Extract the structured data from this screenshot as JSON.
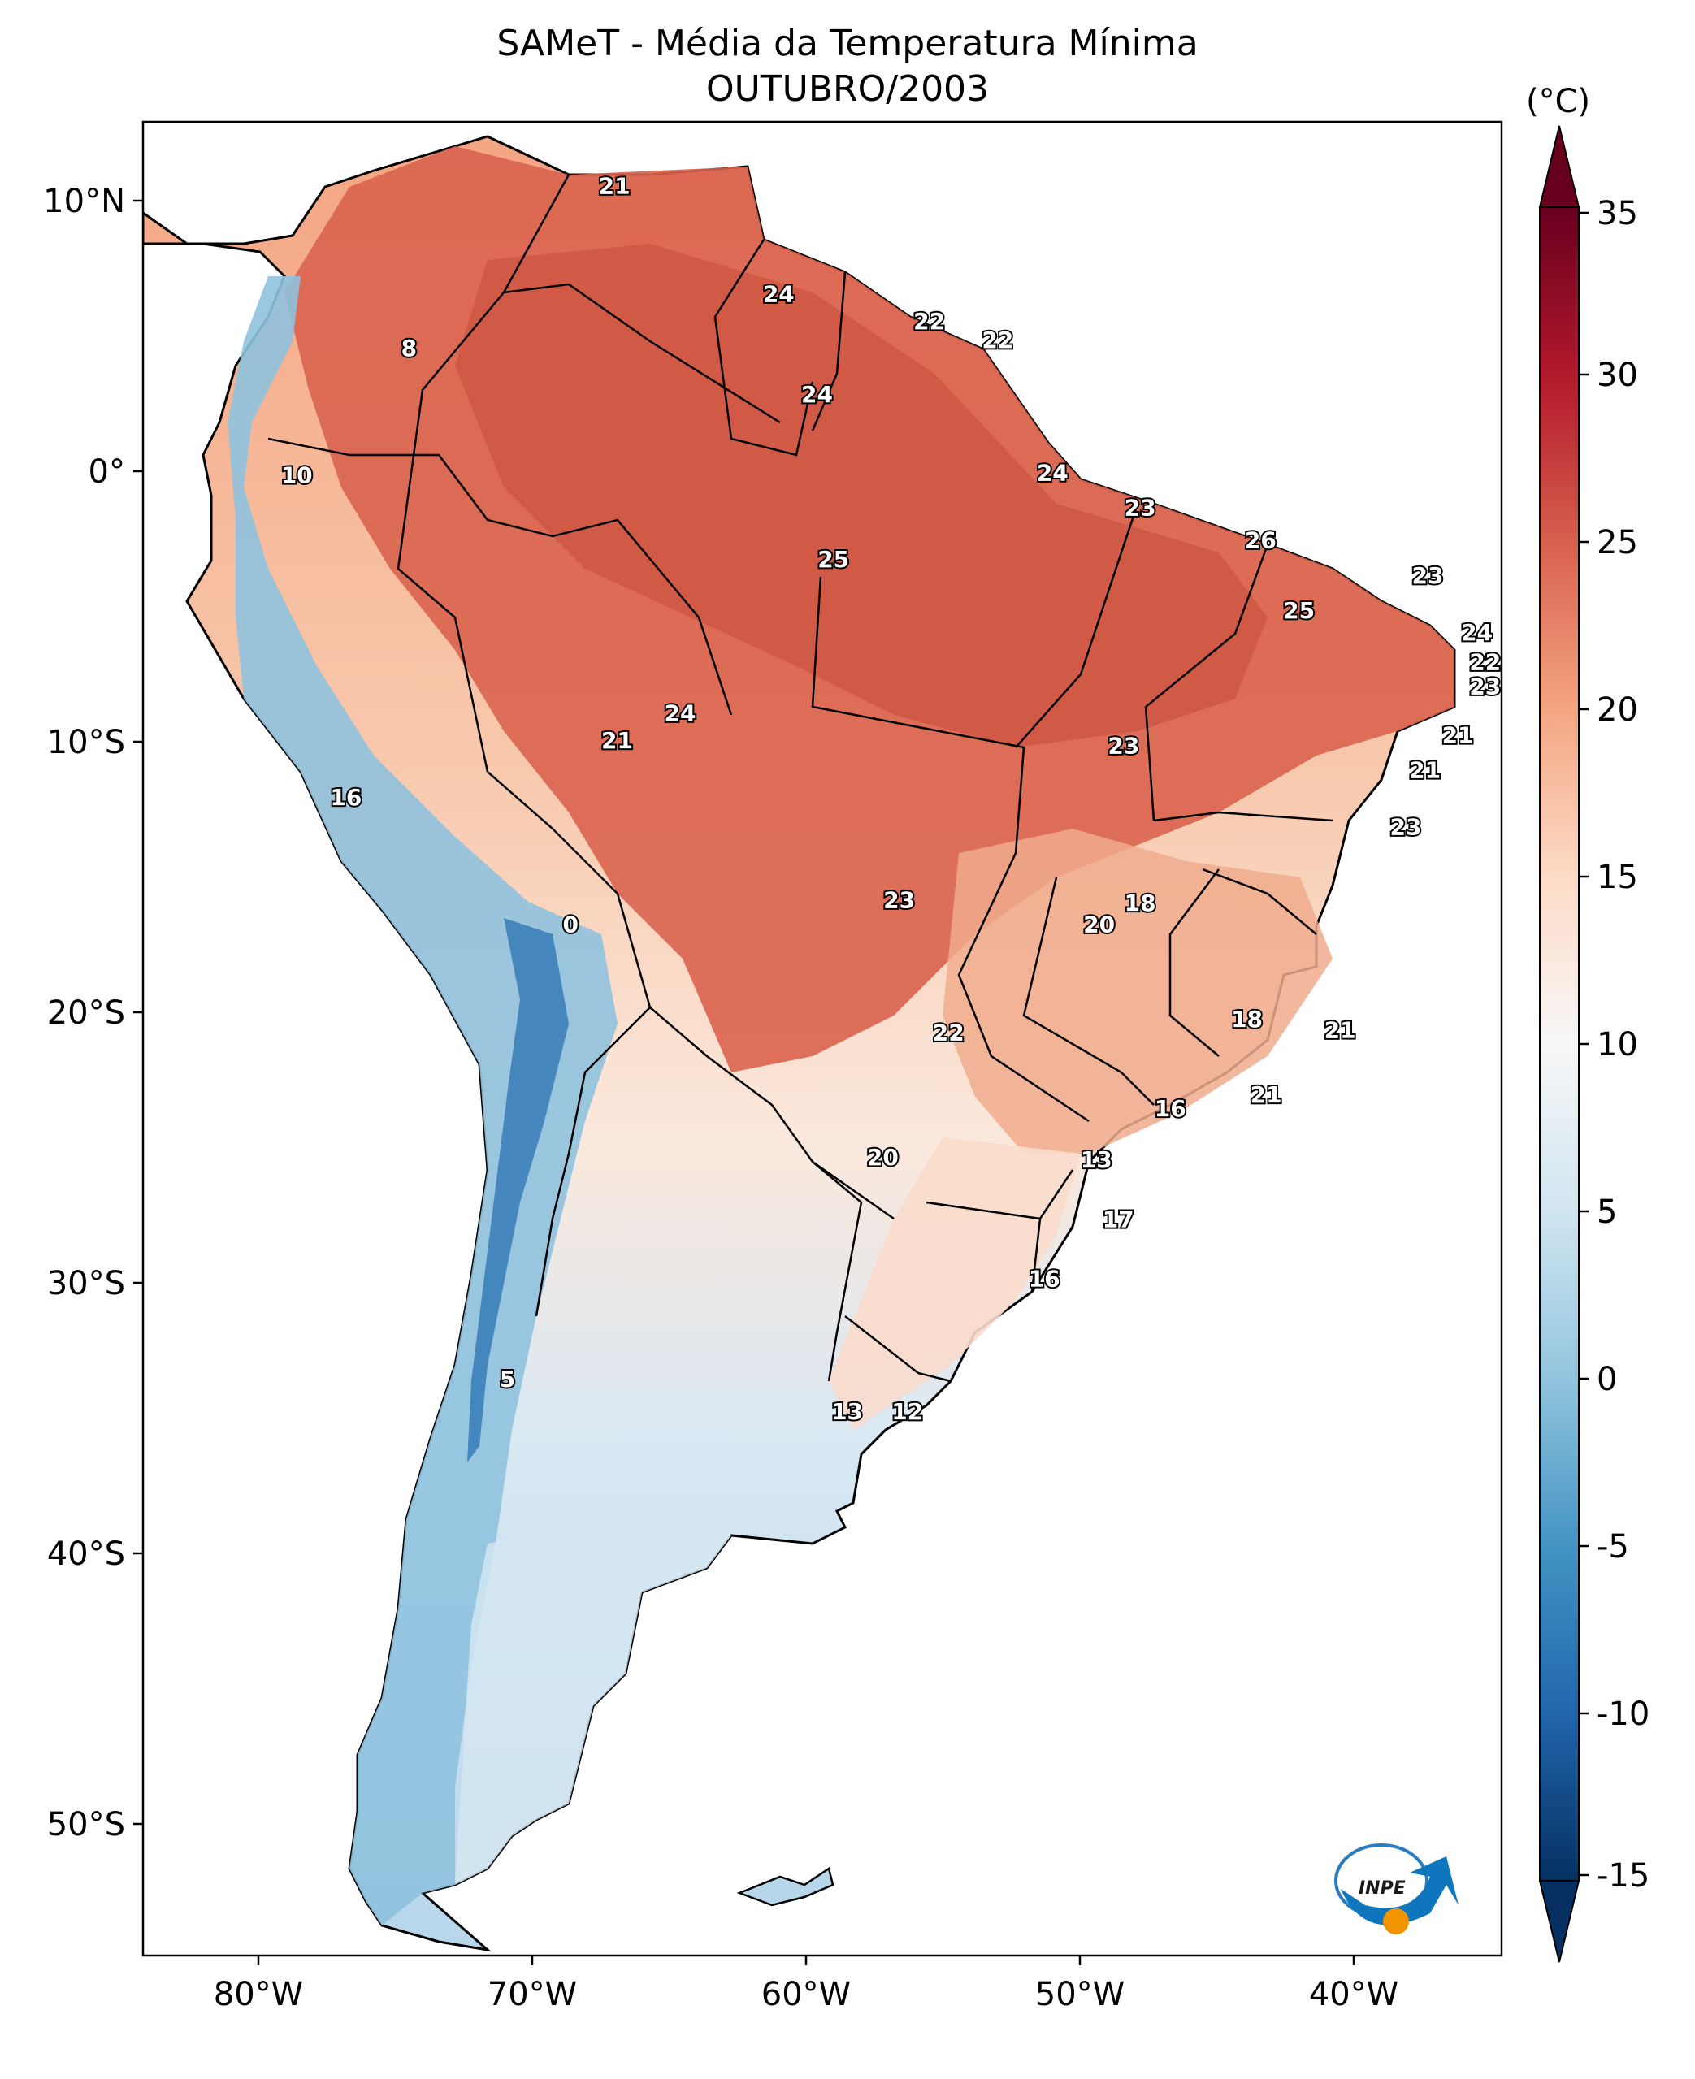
{
  "title": "SAMeT - Média da Temperatura Mínima",
  "subtitle": "OUTUBRO/2003",
  "colorbar": {
    "unit": "(°C)",
    "min": -15,
    "max": 35,
    "ticks": [
      "35",
      "30",
      "25",
      "20",
      "15",
      "10",
      "5",
      "0",
      "-5",
      "-10",
      "-15"
    ],
    "colors": [
      "#053061",
      "#2166ac",
      "#4393c3",
      "#92c5de",
      "#d1e5f0",
      "#f7f7f7",
      "#fddbc7",
      "#f4a582",
      "#d6604d",
      "#b2182b",
      "#67001f"
    ]
  },
  "axes": {
    "lon_ticks": [
      "80°W",
      "70°W",
      "60°W",
      "50°W",
      "40°W"
    ],
    "lat_ticks": [
      "10°N",
      "0°",
      "10°S",
      "20°S",
      "30°S",
      "40°S",
      "50°S"
    ]
  },
  "logo": {
    "text": "INPE",
    "icon": "inpe-logo-icon"
  },
  "contour_labels": [
    {
      "value": "21",
      "lon": -67.0,
      "lat": 10.5
    },
    {
      "value": "8",
      "lon": -74.5,
      "lat": 4.5
    },
    {
      "value": "24",
      "lon": -61.0,
      "lat": 6.5
    },
    {
      "value": "22",
      "lon": -55.5,
      "lat": 5.5
    },
    {
      "value": "22",
      "lon": -53.0,
      "lat": 4.8
    },
    {
      "value": "24",
      "lon": -59.6,
      "lat": 2.8
    },
    {
      "value": "10",
      "lon": -78.6,
      "lat": -0.2
    },
    {
      "value": "24",
      "lon": -51.0,
      "lat": -0.1
    },
    {
      "value": "23",
      "lon": -47.8,
      "lat": -1.4
    },
    {
      "value": "26",
      "lon": -43.4,
      "lat": -2.6
    },
    {
      "value": "25",
      "lon": -59.0,
      "lat": -3.3
    },
    {
      "value": "23",
      "lon": -37.3,
      "lat": -3.9
    },
    {
      "value": "25",
      "lon": -42.0,
      "lat": -5.2
    },
    {
      "value": "24",
      "lon": -35.5,
      "lat": -6.0
    },
    {
      "value": "22",
      "lon": -35.2,
      "lat": -7.1
    },
    {
      "value": "23",
      "lon": -35.2,
      "lat": -8.0
    },
    {
      "value": "24",
      "lon": -64.6,
      "lat": -9.0
    },
    {
      "value": "21",
      "lon": -66.9,
      "lat": -10.0
    },
    {
      "value": "21",
      "lon": -36.2,
      "lat": -9.8
    },
    {
      "value": "23",
      "lon": -48.4,
      "lat": -10.2
    },
    {
      "value": "21",
      "lon": -37.4,
      "lat": -11.1
    },
    {
      "value": "16",
      "lon": -76.8,
      "lat": -12.1
    },
    {
      "value": "23",
      "lon": -38.1,
      "lat": -13.2
    },
    {
      "value": "23",
      "lon": -56.6,
      "lat": -15.9
    },
    {
      "value": "18",
      "lon": -47.8,
      "lat": -16.0
    },
    {
      "value": "0",
      "lon": -68.6,
      "lat": -16.8
    },
    {
      "value": "20",
      "lon": -49.3,
      "lat": -16.8
    },
    {
      "value": "18",
      "lon": -43.9,
      "lat": -20.3
    },
    {
      "value": "21",
      "lon": -40.5,
      "lat": -20.7
    },
    {
      "value": "22",
      "lon": -54.8,
      "lat": -20.8
    },
    {
      "value": "21",
      "lon": -43.2,
      "lat": -23.1
    },
    {
      "value": "16",
      "lon": -46.7,
      "lat": -23.6
    },
    {
      "value": "20",
      "lon": -57.2,
      "lat": -25.4
    },
    {
      "value": "13",
      "lon": -49.4,
      "lat": -25.5
    },
    {
      "value": "17",
      "lon": -48.6,
      "lat": -27.7
    },
    {
      "value": "16",
      "lon": -51.3,
      "lat": -29.9
    },
    {
      "value": "5",
      "lon": -70.9,
      "lat": -33.6
    },
    {
      "value": "13",
      "lon": -58.5,
      "lat": -34.8
    },
    {
      "value": "12",
      "lon": -56.3,
      "lat": -34.8
    }
  ]
}
